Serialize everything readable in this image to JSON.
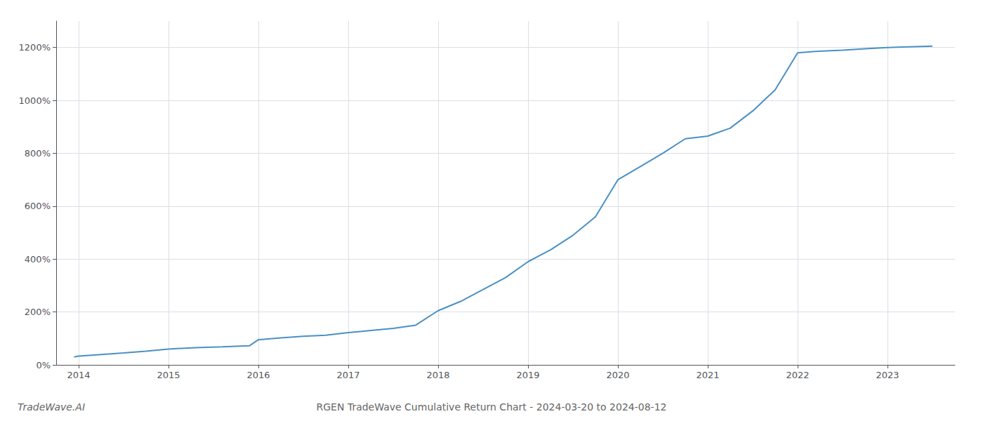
{
  "chart_data": {
    "type": "line",
    "title": "RGEN TradeWave Cumulative Return Chart - 2024-03-20 to 2024-08-12",
    "annotations": [
      "TradeWave.AI"
    ],
    "color": "#4a90c4",
    "x": [
      2013.95,
      2014.0,
      2014.2,
      2014.5,
      2014.75,
      2015.0,
      2015.3,
      2015.6,
      2015.9,
      2016.0,
      2016.25,
      2016.5,
      2016.75,
      2017.0,
      2017.25,
      2017.5,
      2017.75,
      2018.0,
      2018.25,
      2018.5,
      2018.75,
      2019.0,
      2019.25,
      2019.5,
      2019.75,
      2020.0,
      2020.25,
      2020.5,
      2020.75,
      2021.0,
      2021.25,
      2021.5,
      2021.75,
      2022.0,
      2022.2,
      2022.5,
      2022.75,
      2023.0,
      2023.5
    ],
    "values": [
      30,
      33,
      38,
      45,
      52,
      60,
      65,
      68,
      72,
      95,
      102,
      108,
      112,
      122,
      130,
      138,
      150,
      205,
      240,
      285,
      330,
      390,
      435,
      490,
      560,
      700,
      750,
      800,
      855,
      865,
      895,
      960,
      1040,
      1180,
      1185,
      1190,
      1195,
      1200,
      1205
    ],
    "xlim": [
      2013.75,
      2023.75
    ],
    "xticks": [
      2014,
      2015,
      2016,
      2017,
      2018,
      2019,
      2020,
      2021,
      2022,
      2023
    ],
    "ylim": [
      0,
      1300
    ],
    "yticks": [
      {
        "value": 0,
        "label": "0%"
      },
      {
        "value": 200,
        "label": "200%"
      },
      {
        "value": 400,
        "label": "400%"
      },
      {
        "value": 600,
        "label": "600%"
      },
      {
        "value": 800,
        "label": "800%"
      },
      {
        "value": 1000,
        "label": "1000%"
      },
      {
        "value": 1200,
        "label": "1200%"
      }
    ],
    "grid": true
  }
}
